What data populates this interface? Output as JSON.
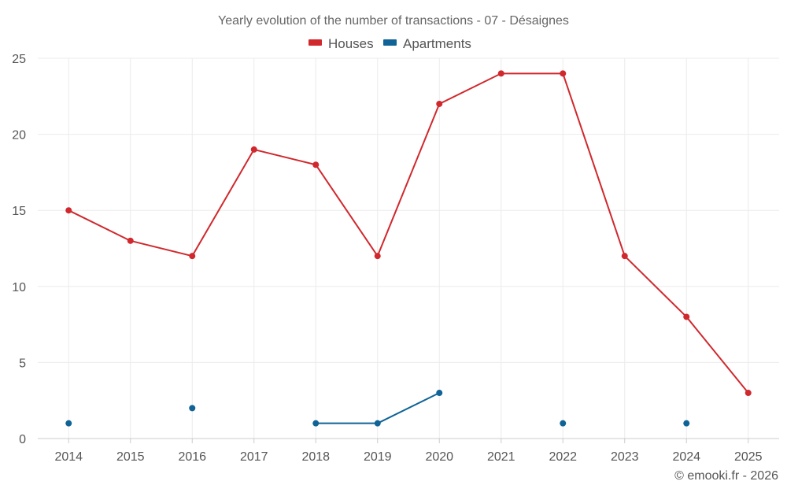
{
  "chart_data": {
    "type": "line",
    "title": "Yearly evolution of the number of transactions - 07 - Désaignes",
    "xlabel": "",
    "ylabel": "",
    "categories": [
      "2014",
      "2015",
      "2016",
      "2017",
      "2018",
      "2019",
      "2020",
      "2021",
      "2022",
      "2023",
      "2024",
      "2025"
    ],
    "ylim": [
      0,
      25
    ],
    "yticks": [
      0,
      5,
      10,
      15,
      20,
      25
    ],
    "grid": true,
    "legend_position": "top-center",
    "series": [
      {
        "name": "Houses",
        "color": "#d0282d",
        "values": [
          15,
          13,
          12,
          19,
          18,
          12,
          22,
          24,
          24,
          12,
          8,
          3
        ]
      },
      {
        "name": "Apartments",
        "color": "#0f6396",
        "values": [
          1,
          null,
          2,
          null,
          1,
          1,
          3,
          null,
          1,
          null,
          1,
          null
        ]
      }
    ]
  },
  "footer": {
    "credit": "© emooki.fr - 2026"
  }
}
